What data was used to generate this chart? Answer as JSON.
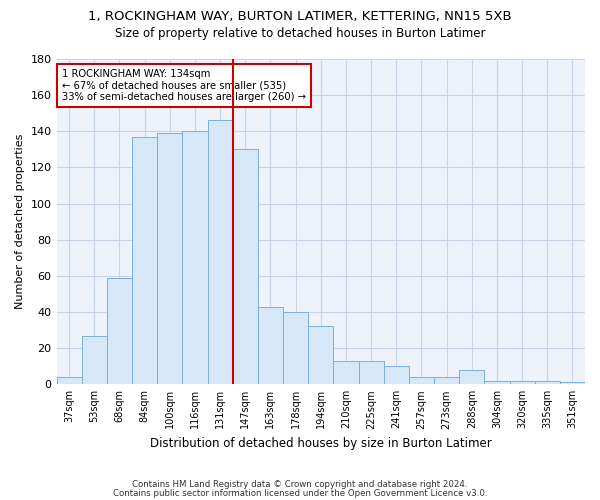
{
  "title": "1, ROCKINGHAM WAY, BURTON LATIMER, KETTERING, NN15 5XB",
  "subtitle": "Size of property relative to detached houses in Burton Latimer",
  "xlabel": "Distribution of detached houses by size in Burton Latimer",
  "ylabel": "Number of detached properties",
  "categories": [
    "37sqm",
    "53sqm",
    "68sqm",
    "84sqm",
    "100sqm",
    "116sqm",
    "131sqm",
    "147sqm",
    "163sqm",
    "178sqm",
    "194sqm",
    "210sqm",
    "225sqm",
    "241sqm",
    "257sqm",
    "273sqm",
    "288sqm",
    "304sqm",
    "320sqm",
    "335sqm",
    "351sqm"
  ],
  "values": [
    4,
    27,
    59,
    137,
    139,
    140,
    146,
    130,
    43,
    40,
    32,
    13,
    13,
    10,
    4,
    4,
    8,
    2,
    2,
    2,
    1
  ],
  "bar_color": "#d6e8f7",
  "bar_edge_color": "#7ab0d8",
  "highlight_index": 6,
  "annotation_line1": "1 ROCKINGHAM WAY: 134sqm",
  "annotation_line2": "← 67% of detached houses are smaller (535)",
  "annotation_line3": "33% of semi-detached houses are larger (260) →",
  "vline_color": "#cc0000",
  "annotation_box_edge": "#cc0000",
  "ylim": [
    0,
    180
  ],
  "yticks": [
    0,
    20,
    40,
    60,
    80,
    100,
    120,
    140,
    160,
    180
  ],
  "footer1": "Contains HM Land Registry data © Crown copyright and database right 2024.",
  "footer2": "Contains public sector information licensed under the Open Government Licence v3.0.",
  "background_color": "#ffffff",
  "plot_bg_color": "#eef3fb",
  "grid_color": "#c8d4e8"
}
